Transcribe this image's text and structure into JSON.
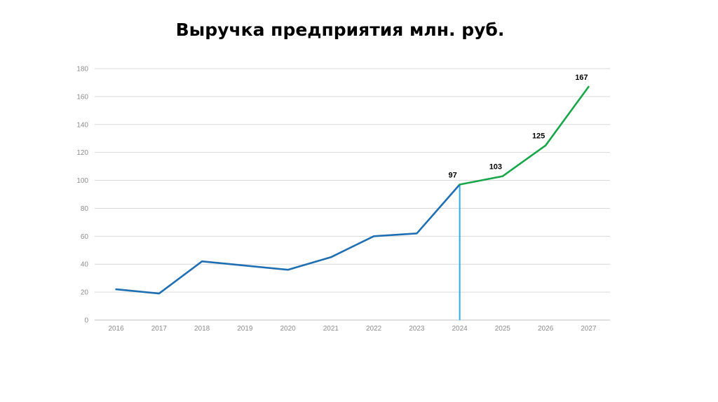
{
  "chart_data": {
    "type": "line",
    "title": "Выручка предприятия млн. руб.",
    "xlabel": "",
    "ylabel": "",
    "x": [
      "2016",
      "2017",
      "2018",
      "2019",
      "2020",
      "2021",
      "2022",
      "2023",
      "2024",
      "2025",
      "2026",
      "2027"
    ],
    "ylim": [
      0,
      180
    ],
    "yticks": [
      0,
      20,
      40,
      60,
      80,
      100,
      120,
      140,
      160,
      180
    ],
    "grid": true,
    "legend": "none",
    "series": [
      {
        "color": "#1f6fb2",
        "values": [
          22,
          19,
          42,
          null,
          36,
          45,
          60,
          62,
          97,
          null,
          null,
          null
        ],
        "interpolated": {
          "2019": 39
        }
      },
      {
        "color": "#1aa64a",
        "values": [
          null,
          null,
          null,
          null,
          null,
          null,
          null,
          null,
          97,
          103,
          125,
          167
        ]
      }
    ],
    "marker_line": {
      "x": "2024",
      "color": "#2ab0e0"
    },
    "data_labels": [
      {
        "x": "2024",
        "value": "97"
      },
      {
        "x": "2025",
        "value": "103"
      },
      {
        "x": "2026",
        "value": "125"
      },
      {
        "x": "2027",
        "value": "167"
      }
    ]
  }
}
